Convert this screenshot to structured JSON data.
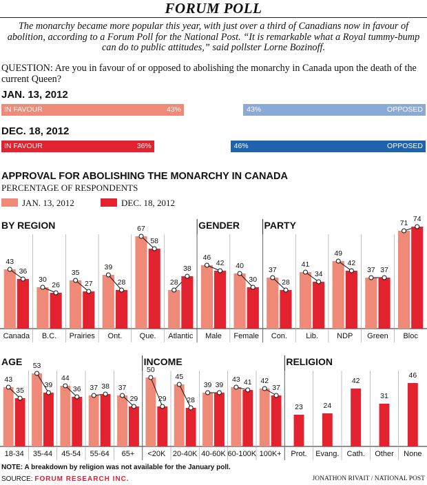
{
  "header": {
    "title": "FORUM POLL",
    "intro": "The monarchy became more popular this year, with just over a third of Canadians now in favour of abolition, according to a Forum Poll for the National Post. “It is remarkable what a Royal tummy-bump can do to public attitudes,” said pollster Lorne Bozinoff.",
    "question": "QUESTION: Are you in favour of or opposed to abolishing the monarchy in Canada upon the death of the current Queen?"
  },
  "topline": [
    {
      "date": "JAN. 13, 2012",
      "favour_label": "IN FAVOUR",
      "favour_value": "43%",
      "favour_pct": 43,
      "opposed_label": "OPPOSED",
      "opposed_value": "43%",
      "opposed_pct": 43,
      "favour_color": "#f08a78",
      "opposed_color": "#8aa9d6"
    },
    {
      "date": "DEC. 18, 2012",
      "favour_label": "IN FAVOUR",
      "favour_value": "36%",
      "favour_pct": 36,
      "opposed_label": "OPPOSED",
      "opposed_value": "46%",
      "opposed_pct": 46,
      "favour_color": "#e2222e",
      "opposed_color": "#1e63ad"
    }
  ],
  "section": {
    "title": "APPROVAL FOR ABOLISHING THE MONARCHY IN CANADA",
    "subtitle": "PERCENTAGE OF RESPONDENTS",
    "legend": [
      {
        "label": "JAN. 13, 2012",
        "color": "#f08a78"
      },
      {
        "label": "DEC. 18, 2012",
        "color": "#e2222e"
      }
    ]
  },
  "chart_data": [
    {
      "type": "bar",
      "panel": "top",
      "groups": [
        {
          "title": "BY REGION",
          "categories": [
            "Canada",
            "B.C.",
            "Prairies",
            "Ont.",
            "Que.",
            "Atlantic"
          ]
        },
        {
          "title": "GENDER",
          "categories": [
            "Male",
            "Female"
          ]
        },
        {
          "title": "PARTY",
          "categories": [
            "Con.",
            "Lib.",
            "NDP",
            "Green",
            "Bloc"
          ]
        }
      ],
      "categories": [
        "Canada",
        "B.C.",
        "Prairies",
        "Ont.",
        "Que.",
        "Atlantic",
        "Male",
        "Female",
        "Con.",
        "Lib.",
        "NDP",
        "Green",
        "Bloc"
      ],
      "series": [
        {
          "name": "JAN. 13, 2012",
          "color": "#f08a78",
          "values": [
            43,
            30,
            35,
            39,
            67,
            28,
            46,
            40,
            37,
            41,
            49,
            37,
            71
          ]
        },
        {
          "name": "DEC. 18, 2012",
          "color": "#e2222e",
          "values": [
            36,
            26,
            27,
            28,
            58,
            38,
            42,
            30,
            28,
            34,
            42,
            37,
            74
          ]
        }
      ],
      "ylim": [
        0,
        100
      ]
    },
    {
      "type": "bar",
      "panel": "bottom",
      "groups": [
        {
          "title": "AGE",
          "categories": [
            "18-34",
            "35-44",
            "45-54",
            "55-64",
            "65+"
          ]
        },
        {
          "title": "INCOME",
          "categories": [
            "<20K",
            "20-40K",
            "40-60K",
            "60-100K",
            "100K+"
          ]
        },
        {
          "title": "RELIGION",
          "categories": [
            "Prot.",
            "Evang.",
            "Cath.",
            "Other",
            "None"
          ]
        }
      ],
      "categories": [
        "18-34",
        "35-44",
        "45-54",
        "55-64",
        "65+",
        "<20K",
        "20-40K",
        "40-60K",
        "60-100K",
        "100K+",
        "Prot.",
        "Evang.",
        "Cath.",
        "Other",
        "None"
      ],
      "series": [
        {
          "name": "JAN. 13, 2012",
          "color": "#f08a78",
          "values": [
            43,
            53,
            44,
            37,
            37,
            50,
            45,
            39,
            43,
            42,
            null,
            null,
            null,
            null,
            null
          ]
        },
        {
          "name": "DEC. 18, 2012",
          "color": "#e2222e",
          "values": [
            35,
            39,
            36,
            38,
            29,
            29,
            28,
            39,
            41,
            37,
            23,
            24,
            42,
            31,
            46
          ]
        }
      ],
      "ylim": [
        0,
        100
      ]
    }
  ],
  "footer": {
    "note": "NOTE: A breakdown by religion was not available for the January poll.",
    "source_prefix": "SOURCE:",
    "source_name": "FORUM RESEARCH INC.",
    "credit": "JONATHON RIVAIT / NATIONAL POST"
  }
}
